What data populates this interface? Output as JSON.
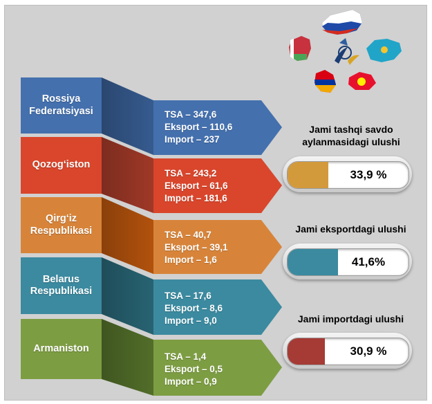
{
  "chart_data": {
    "type": "table",
    "rows": [
      {
        "country": "Rossiya Federatsiyasi",
        "tsa": "TSA – 347,6",
        "eksport": "Eksport – 110,6",
        "import": "Import – 237",
        "color": "#4470ae"
      },
      {
        "country": "Qozog‘iston",
        "tsa": "TSA – 243,2",
        "eksport": "Eksport – 61,6",
        "import": "Import – 181,6",
        "color": "#d9462c"
      },
      {
        "country": "Qirg‘iz Respublikasi",
        "tsa": "TSA – 40,7",
        "eksport": "Eksport – 39,1",
        "import": "Import – 1,6",
        "color": "#d7843a"
      },
      {
        "country": "Belarus Respublikasi",
        "tsa": "TSA – 17,6",
        "eksport": "Eksport – 8,6",
        "import": "Import – 9,0",
        "color": "#3b8aa0"
      },
      {
        "country": "Armaniston",
        "tsa": "TSA – 1,4",
        "eksport": "Eksport – 0,5",
        "import": "Import – 0,9",
        "color": "#7d9d43"
      }
    ],
    "shares": [
      {
        "title": "Jami tashqi  savdo aylanmasidagi  ulushi",
        "label": "33,9 %",
        "value": 33.9,
        "color": "#d39a3c"
      },
      {
        "title": "Jami eksportdagi  ulushi",
        "label": "41,6%",
        "value": 41.6,
        "color": "#3b8aa0"
      },
      {
        "title": "Jami importdagi  ulushi",
        "label": "30,9 %",
        "value": 30.9,
        "color": "#a63a35"
      }
    ]
  },
  "icons": [
    "russia-map-icon",
    "belarus-map-icon",
    "eaeu-emblem-icon",
    "kazakhstan-map-icon",
    "armenia-map-icon",
    "kyrgyzstan-map-icon"
  ]
}
